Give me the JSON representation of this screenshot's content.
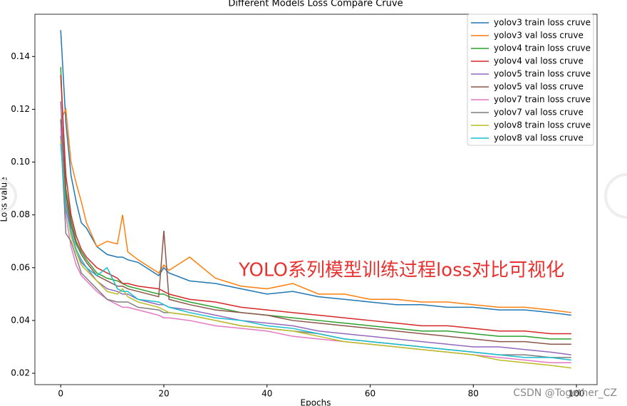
{
  "chart_data": {
    "type": "line",
    "title": "Different Models Loss Compare Cruve",
    "xlabel": "Epochs",
    "ylabel": "Loss value",
    "annotation": "YOLO系列模型训练过程loss对比可视化",
    "watermark": "CSDN @Together_CZ",
    "legend": "upper right",
    "x": [
      0,
      1,
      2,
      3,
      4,
      5,
      7,
      9,
      11,
      12,
      13,
      15,
      19,
      20,
      21,
      25,
      30,
      35,
      40,
      45,
      50,
      55,
      60,
      65,
      70,
      75,
      80,
      85,
      90,
      95,
      99
    ],
    "xlim": [
      -5,
      104
    ],
    "xticks": [
      0,
      20,
      40,
      60,
      80,
      100
    ],
    "ylim": [
      0.0157,
      0.156
    ],
    "yticks": [
      0.02,
      0.04,
      0.06,
      0.08,
      {
        "value": 0.1,
        "label": "0.10"
      },
      0.12,
      0.14
    ],
    "series": [
      {
        "name": "yolov3 train loss cruve",
        "color": "#1f77b4",
        "values": [
          0.15,
          0.115,
          0.095,
          0.085,
          0.077,
          0.075,
          0.068,
          0.065,
          0.064,
          0.064,
          0.063,
          0.062,
          0.057,
          0.06,
          0.058,
          0.055,
          0.054,
          0.052,
          0.05,
          0.051,
          0.049,
          0.048,
          0.047,
          0.046,
          0.046,
          0.045,
          0.045,
          0.044,
          0.044,
          0.043,
          0.042
        ]
      },
      {
        "name": "yolov3 val loss cruve",
        "color": "#ff7f0e",
        "values": [
          0.116,
          0.12,
          0.1,
          0.092,
          0.085,
          0.077,
          0.068,
          0.07,
          0.069,
          0.08,
          0.066,
          0.063,
          0.058,
          0.061,
          0.059,
          0.064,
          0.056,
          0.053,
          0.052,
          0.054,
          0.05,
          0.05,
          0.048,
          0.048,
          0.047,
          0.047,
          0.046,
          0.045,
          0.045,
          0.044,
          0.043
        ]
      },
      {
        "name": "yolov4 train loss cruve",
        "color": "#2ca02c",
        "values": [
          0.136,
          0.09,
          0.078,
          0.07,
          0.066,
          0.063,
          0.058,
          0.056,
          0.055,
          0.054,
          0.053,
          0.052,
          0.05,
          0.05,
          0.049,
          0.047,
          0.045,
          0.043,
          0.042,
          0.041,
          0.04,
          0.039,
          0.038,
          0.037,
          0.036,
          0.036,
          0.035,
          0.034,
          0.034,
          0.033,
          0.033
        ]
      },
      {
        "name": "yolov4 val loss cruve",
        "color": "#d62728",
        "values": [
          0.133,
          0.095,
          0.08,
          0.072,
          0.067,
          0.064,
          0.06,
          0.058,
          0.056,
          0.054,
          0.054,
          0.053,
          0.052,
          0.051,
          0.05,
          0.048,
          0.047,
          0.045,
          0.044,
          0.043,
          0.042,
          0.041,
          0.04,
          0.039,
          0.038,
          0.038,
          0.037,
          0.036,
          0.036,
          0.035,
          0.035
        ]
      },
      {
        "name": "yolov5 train loss cruve",
        "color": "#9467bd",
        "values": [
          0.123,
          0.085,
          0.074,
          0.066,
          0.062,
          0.06,
          0.055,
          0.052,
          0.051,
          0.05,
          0.05,
          0.048,
          0.046,
          0.046,
          0.045,
          0.044,
          0.042,
          0.04,
          0.039,
          0.038,
          0.036,
          0.035,
          0.034,
          0.033,
          0.032,
          0.031,
          0.03,
          0.03,
          0.029,
          0.028,
          0.027
        ]
      },
      {
        "name": "yolov5 val loss cruve",
        "color": "#8c564b",
        "values": [
          0.116,
          0.088,
          0.076,
          0.069,
          0.065,
          0.062,
          0.057,
          0.055,
          0.053,
          0.053,
          0.052,
          0.051,
          0.049,
          0.074,
          0.048,
          0.046,
          0.044,
          0.043,
          0.042,
          0.04,
          0.039,
          0.038,
          0.037,
          0.036,
          0.035,
          0.034,
          0.033,
          0.032,
          0.032,
          0.031,
          0.031
        ]
      },
      {
        "name": "yolov7 train loss cruve",
        "color": "#e377c2",
        "values": [
          0.113,
          0.08,
          0.068,
          0.061,
          0.057,
          0.055,
          0.051,
          0.048,
          0.046,
          0.045,
          0.045,
          0.044,
          0.042,
          0.041,
          0.041,
          0.04,
          0.038,
          0.037,
          0.036,
          0.034,
          0.033,
          0.032,
          0.031,
          0.03,
          0.029,
          0.028,
          0.027,
          0.026,
          0.025,
          0.024,
          0.024
        ]
      },
      {
        "name": "yolov7 val loss cruve",
        "color": "#7f7f7f",
        "values": [
          0.11,
          0.073,
          0.07,
          0.064,
          0.058,
          0.056,
          0.052,
          0.048,
          0.047,
          0.047,
          0.047,
          0.045,
          0.044,
          0.043,
          0.043,
          0.042,
          0.04,
          0.038,
          0.037,
          0.036,
          0.035,
          0.033,
          0.032,
          0.031,
          0.03,
          0.029,
          0.028,
          0.027,
          0.027,
          0.026,
          0.026
        ]
      },
      {
        "name": "yolov8 train loss cruve",
        "color": "#bcbd22",
        "values": [
          0.108,
          0.083,
          0.072,
          0.066,
          0.061,
          0.059,
          0.055,
          0.051,
          0.05,
          0.052,
          0.049,
          0.047,
          0.045,
          0.044,
          0.043,
          0.042,
          0.04,
          0.038,
          0.037,
          0.036,
          0.034,
          0.032,
          0.031,
          0.03,
          0.029,
          0.028,
          0.027,
          0.025,
          0.024,
          0.023,
          0.022
        ]
      },
      {
        "name": "yolov8 val loss cruve",
        "color": "#17becf",
        "values": [
          0.107,
          0.082,
          0.074,
          0.067,
          0.063,
          0.06,
          0.057,
          0.06,
          0.052,
          0.051,
          0.051,
          0.048,
          0.047,
          0.046,
          0.045,
          0.043,
          0.041,
          0.04,
          0.038,
          0.037,
          0.035,
          0.033,
          0.032,
          0.031,
          0.03,
          0.029,
          0.028,
          0.027,
          0.026,
          0.026,
          0.025
        ]
      }
    ]
  }
}
